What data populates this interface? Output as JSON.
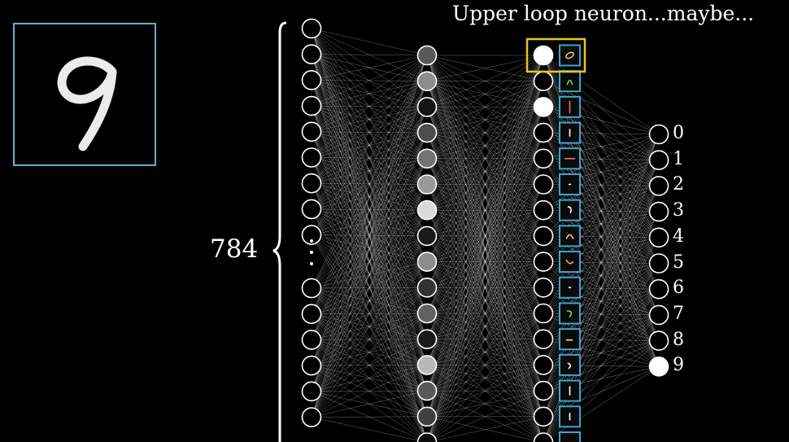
{
  "caption": "Upper loop neuron...maybe...",
  "input_count_label": "784",
  "input_image": {
    "digit": "9",
    "frame_color": "#62b0ce"
  },
  "network": {
    "input_activations_top": [
      0,
      0,
      0,
      0,
      0,
      0,
      0,
      0,
      0
    ],
    "input_activations_bottom": [
      0,
      0,
      0,
      0,
      0,
      0
    ],
    "hidden1_activations": [
      0.35,
      0.55,
      0.08,
      0.3,
      0.45,
      0.6,
      0.85,
      0.1,
      0.55,
      0.2,
      0.38,
      0.1,
      0.72,
      0.35,
      0.25,
      0.05
    ],
    "hidden2_activations": [
      1,
      0,
      1,
      0,
      0,
      0,
      0,
      0,
      0,
      0,
      0,
      0,
      0,
      0,
      0,
      0
    ],
    "highlighted_hidden2_index": 0,
    "highlight_color": "#e6c619",
    "feature_box_color": "#3aa6d0",
    "output_labels": [
      "0",
      "1",
      "2",
      "3",
      "4",
      "5",
      "6",
      "7",
      "8",
      "9"
    ],
    "output_activations": [
      0,
      0,
      0,
      0,
      0,
      0,
      0,
      0,
      0,
      1
    ]
  }
}
